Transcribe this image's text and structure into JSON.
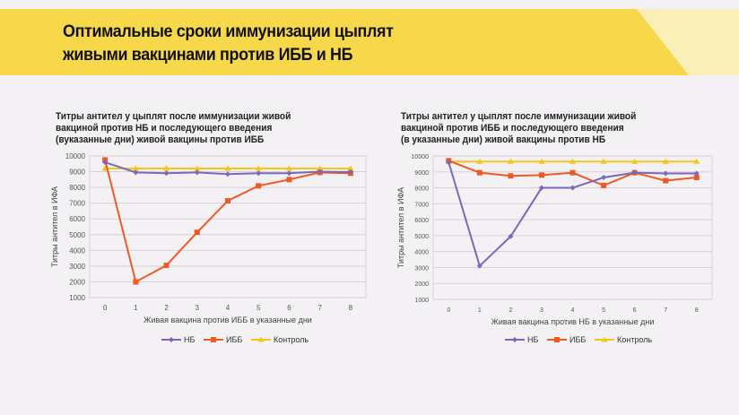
{
  "slide": {
    "title_line1": "Оптимальные сроки иммунизации цыплят",
    "title_line2": "живыми вакцинами против ИББ и НБ",
    "banner_color": "#f6d84a",
    "banner_light_color": "#fbefb8",
    "background": "#f3f1f4"
  },
  "chart_data": [
    {
      "type": "line",
      "title_lines": [
        "Титры антител у цыплят после иммунизации живой",
        "вакциной против НБ и последующего введения",
        "(вуказанные дни) живой вакцины против ИББ"
      ],
      "xlabel": "Живая вакцина против ИББ в указанные дни",
      "ylabel": "Титры антител в ИФА",
      "categories": [
        "0",
        "1",
        "2",
        "3",
        "4",
        "5",
        "6",
        "7",
        "8"
      ],
      "ylim": [
        1000,
        10000
      ],
      "yticks": [
        "1000",
        "2000",
        "3000",
        "4000",
        "5000",
        "6000",
        "7000",
        "8000",
        "9000",
        "10000"
      ],
      "grid": true,
      "legend": "bottom",
      "series": [
        {
          "name": "НБ",
          "color": "#7b68b8",
          "marker": "diamond",
          "values": [
            9600,
            8950,
            8900,
            8950,
            8850,
            8900,
            8900,
            9000,
            8980
          ]
        },
        {
          "name": "ИББ",
          "color": "#ee5a24",
          "marker": "square",
          "values": [
            9750,
            2000,
            3050,
            5150,
            7150,
            8100,
            8500,
            8950,
            8900
          ]
        },
        {
          "name": "Контроль",
          "color": "#f5c518",
          "marker": "triangle",
          "values": [
            9200,
            9200,
            9200,
            9200,
            9200,
            9200,
            9200,
            9200,
            9200
          ]
        }
      ]
    },
    {
      "type": "line",
      "title_lines": [
        "Титры антител у цыплят после иммунизации живой",
        "вакциной против ИББ и последующего введения",
        "(в указанные дни) живой вакцины против НБ"
      ],
      "xlabel": "Живая вакцина против НБ в указанные дни",
      "ylabel": "Титры антител в ИФА",
      "categories": [
        "0",
        "1",
        "2",
        "3",
        "4",
        "5",
        "6",
        "7",
        "8"
      ],
      "ylim": [
        1000,
        10000
      ],
      "yticks": [
        "1000",
        "2000",
        "3000",
        "4000",
        "5000",
        "6000",
        "7000",
        "8000",
        "9000",
        "10000"
      ],
      "grid": true,
      "legend": "bottom",
      "series": [
        {
          "name": "НБ",
          "color": "#7b68b8",
          "marker": "diamond",
          "values": [
            9600,
            3100,
            4950,
            8000,
            8000,
            8650,
            8950,
            8900,
            8900
          ]
        },
        {
          "name": "ИББ",
          "color": "#ee5a24",
          "marker": "square",
          "values": [
            9700,
            8950,
            8750,
            8800,
            8950,
            8150,
            8950,
            8450,
            8650
          ]
        },
        {
          "name": "Контроль",
          "color": "#f5c518",
          "marker": "triangle",
          "values": [
            9650,
            9650,
            9650,
            9650,
            9650,
            9650,
            9650,
            9650,
            9650
          ]
        }
      ]
    }
  ]
}
